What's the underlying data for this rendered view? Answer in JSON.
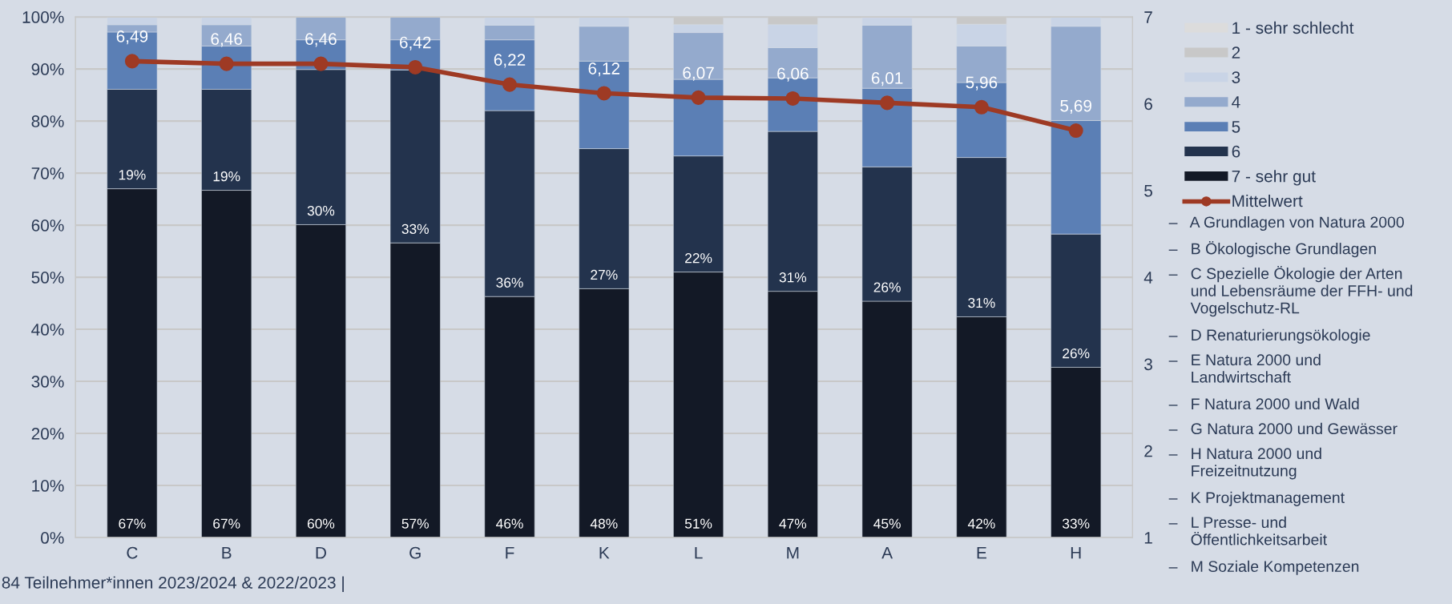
{
  "chart_data": {
    "type": "bar",
    "stacked": true,
    "categories": [
      "C",
      "B",
      "D",
      "G",
      "F",
      "K",
      "L",
      "M",
      "A",
      "E",
      "H"
    ],
    "series": [
      {
        "name": "7 - sehr gut",
        "color": "#131926",
        "values": [
          67.0,
          66.7,
          60.1,
          56.6,
          46.3,
          47.8,
          51.0,
          47.3,
          45.4,
          42.4,
          32.7
        ],
        "value_labels": [
          "67%",
          "67%",
          "60%",
          "57%",
          "46%",
          "48%",
          "51%",
          "47%",
          "45%",
          "42%",
          "33%"
        ]
      },
      {
        "name": "6",
        "color": "#23334d",
        "values": [
          19.1,
          19.4,
          29.8,
          33.2,
          35.7,
          26.9,
          22.3,
          30.7,
          25.8,
          30.6,
          25.6
        ],
        "value_labels": [
          "19%",
          "19%",
          "30%",
          "33%",
          "36%",
          "27%",
          "22%",
          "31%",
          "26%",
          "31%",
          "26%"
        ]
      },
      {
        "name": "5",
        "color": "#5b7fb5",
        "values": [
          11.0,
          8.3,
          5.7,
          5.8,
          13.6,
          16.8,
          14.7,
          10.3,
          15.1,
          14.4,
          21.8
        ]
      },
      {
        "name": "4",
        "color": "#94aacd",
        "values": [
          1.4,
          4.1,
          4.4,
          4.4,
          2.8,
          6.7,
          9.0,
          5.8,
          12.1,
          7.0,
          18.1
        ]
      },
      {
        "name": "3",
        "color": "#c9d4e6",
        "values": [
          1.5,
          1.5,
          0,
          0,
          1.6,
          1.8,
          1.5,
          4.4,
          1.5,
          4.2,
          1.8
        ]
      },
      {
        "name": "2",
        "color": "#c8c8c8",
        "values": [
          0,
          0,
          0,
          0,
          0,
          0,
          1.5,
          1.5,
          0,
          1.4,
          0
        ]
      },
      {
        "name": "1 - sehr schlecht",
        "color": "#dcdcdc",
        "values": [
          0,
          0,
          0,
          0,
          0,
          0,
          0,
          0,
          0,
          0,
          0
        ]
      },
      {
        "name": "Mittelwert",
        "type": "line",
        "axis": "y2",
        "color": "#9e3a24",
        "marker": "circle",
        "values": [
          6.49,
          6.46,
          6.46,
          6.42,
          6.22,
          6.12,
          6.07,
          6.06,
          6.01,
          5.96,
          5.69
        ],
        "value_labels": [
          "6,49",
          "6,46",
          "6,46",
          "6,42",
          "6,22",
          "6,12",
          "6,07",
          "6,06",
          "6,01",
          "5,96",
          "5,69"
        ]
      }
    ],
    "ylim": [
      0,
      100
    ],
    "yticks": [
      {
        "value": 0,
        "label": "0%"
      },
      {
        "value": 10,
        "label": "10%"
      },
      {
        "value": 20,
        "label": "20%"
      },
      {
        "value": 30,
        "label": "30%"
      },
      {
        "value": 40,
        "label": "40%"
      },
      {
        "value": 50,
        "label": "50%"
      },
      {
        "value": 60,
        "label": "60%"
      },
      {
        "value": 70,
        "label": "70%"
      },
      {
        "value": 80,
        "label": "80%"
      },
      {
        "value": 90,
        "label": "90%"
      },
      {
        "value": 100,
        "label": "100%"
      }
    ],
    "y2lim": [
      1,
      7
    ],
    "y2ticks": [
      1,
      2,
      3,
      4,
      5,
      6,
      7
    ],
    "grid": "y",
    "legend": "right",
    "annotations": [
      "84 Teilnehmer*innen 2023/2024 & 2022/2023 |",
      "–   A Grundlagen von Natura 2000",
      "–   B Ökologische Grundlagen",
      "–   C Spezielle Ökologie der Arten\n     und Lebensräume der FFH- und\n     Vogelschutz-RL",
      "–   D Renaturierungsökologie",
      "–   E Natura 2000 und\n     Landwirtschaft",
      "–   F Natura 2000 und Wald",
      "–   G Natura 2000 und Gewässer",
      "–   H Natura 2000 und\n     Freizeitnutzung",
      "–   K Projektmanagement",
      "–   L Presse- und\n     Öffentlichkeitsarbeit",
      "–   M Soziale Kompetenzen"
    ]
  }
}
